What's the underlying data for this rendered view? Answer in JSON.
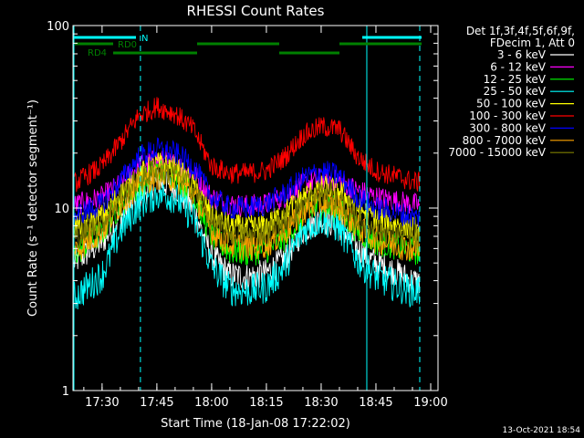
{
  "chart_data": {
    "type": "line",
    "title": "RHESSI Count Rates",
    "xlabel": "Start Time (18-Jan-08 17:22:02)",
    "ylabel": "Count Rate (s⁻¹ detector segment⁻¹)",
    "y_scale": "log",
    "ylim": [
      1,
      100
    ],
    "xlim": [
      "17:22:02",
      "19:02:00"
    ],
    "x_ticks": [
      "17:30",
      "17:45",
      "18:00",
      "18:15",
      "18:30",
      "18:45",
      "19:00"
    ],
    "y_ticks": [
      "1",
      "10",
      "100"
    ],
    "legend_header": [
      "Det 1f,3f,4f,5f,6f,9f,",
      "FDecim 1, Att 0"
    ],
    "legend_position": "right",
    "x_sample_times": [
      "17:22",
      "17:30",
      "17:35",
      "17:40",
      "17:45",
      "17:50",
      "17:55",
      "18:00",
      "18:05",
      "18:10",
      "18:15",
      "18:20",
      "18:25",
      "18:30",
      "18:35",
      "18:40",
      "18:45",
      "18:50",
      "18:55",
      "19:00"
    ],
    "series": [
      {
        "name": "3 - 6 keV",
        "color": "#ffffff",
        "values": [
          5,
          6.5,
          9,
          11.5,
          14,
          13,
          10,
          5.5,
          4.3,
          4.2,
          4.4,
          5.3,
          7.5,
          8.7,
          8,
          6,
          5,
          4.5,
          4,
          3.8
        ]
      },
      {
        "name": "6 - 12 keV",
        "color": "#ff00ff",
        "values": [
          10.3,
          11.5,
          13.5,
          17,
          18.3,
          17.5,
          15.5,
          11.5,
          10.5,
          10.3,
          10.5,
          11.5,
          13.5,
          14.5,
          14,
          12.5,
          11.5,
          11,
          10.5,
          10.3
        ]
      },
      {
        "name": "12 - 25 keV",
        "color": "#00ff00",
        "values": [
          5.5,
          7.3,
          10.5,
          13,
          16,
          15,
          12,
          7,
          5.8,
          5.7,
          5.9,
          6.8,
          9,
          10.3,
          9.7,
          7.5,
          6.5,
          6.2,
          5.8,
          5.7
        ]
      },
      {
        "name": "25 - 50 keV",
        "color": "#00ffff",
        "values": [
          3.2,
          4.3,
          7.5,
          10.5,
          12,
          11.5,
          8.8,
          4.8,
          3.6,
          3.5,
          3.7,
          4.8,
          7.5,
          8.7,
          7.8,
          5.2,
          4.2,
          3.8,
          3.5,
          3.5
        ]
      },
      {
        "name": "50 - 100 keV",
        "color": "#ffff00",
        "values": [
          7.8,
          9,
          12,
          15,
          17.5,
          16.5,
          13.5,
          9,
          8,
          7.8,
          8,
          9.5,
          11.5,
          13,
          12.5,
          10,
          8.8,
          8.3,
          7.8,
          7.5
        ]
      },
      {
        "name": "100 - 300 keV",
        "color": "#ff0000",
        "values": [
          13.5,
          17,
          23,
          32,
          36,
          33,
          27,
          17,
          15.5,
          15.5,
          16,
          19,
          25,
          28,
          27,
          19,
          16,
          15,
          14,
          13.5
        ]
      },
      {
        "name": "300 - 800 keV",
        "color": "#0000ff",
        "values": [
          9,
          10.5,
          14,
          19,
          21,
          20,
          17,
          11.5,
          10,
          10,
          10.5,
          12,
          14.5,
          16,
          15,
          11.5,
          10,
          9.5,
          9,
          8.5
        ]
      },
      {
        "name": "800 - 7000 keV",
        "color": "#ffa500",
        "values": [
          5.7,
          7.5,
          10.5,
          13.5,
          15,
          14.5,
          12,
          7.5,
          6.3,
          6.1,
          6.3,
          7.3,
          9.5,
          10.7,
          10,
          7.8,
          6.7,
          6.3,
          6,
          5.8
        ]
      },
      {
        "name": "7000 - 15000 keV",
        "color": "#808000",
        "values": [
          6.8,
          8.3,
          11.5,
          14.5,
          16,
          15.5,
          13,
          8.5,
          7.3,
          7.1,
          7.4,
          8.5,
          10.5,
          11.7,
          11,
          8.8,
          7.6,
          7.2,
          6.8,
          6.5
        ]
      }
    ],
    "bar_labels": [
      "N",
      "RD0",
      "RD4"
    ],
    "cyan_vertical_lines": [
      "17:22:02",
      "18:42:30"
    ],
    "dashed_vertical_lines": [
      "17:40:30",
      "18:57:00"
    ],
    "footer_date": "13-Oct-2021 18:54"
  }
}
